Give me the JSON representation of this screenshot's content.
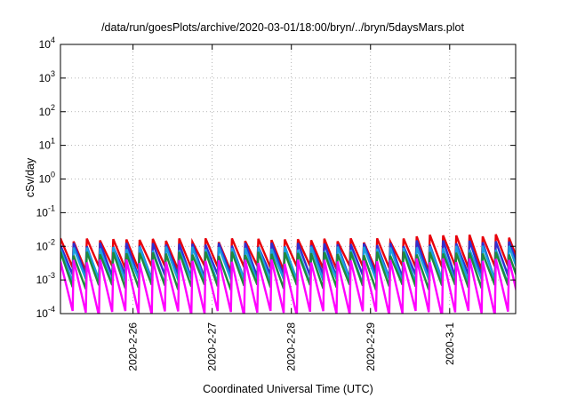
{
  "chart_data": {
    "type": "line",
    "title": "/data/run/goesPlots/archive/2020-03-01/18:00/bryn/../bryn/5daysMars.plot",
    "xlabel": "Coordinated Universal Time (UTC)",
    "ylabel": "cSv/day",
    "yscale": "log",
    "ylim": [
      0.0001,
      10000
    ],
    "xlim": [
      "2020-02-25 02:00",
      "2020-03-01 20:00"
    ],
    "y_ticks": [
      {
        "value": 0.0001,
        "base": "10",
        "exp": "-4"
      },
      {
        "value": 0.001,
        "base": "10",
        "exp": "-3"
      },
      {
        "value": 0.01,
        "base": "10",
        "exp": "-2"
      },
      {
        "value": 0.1,
        "base": "10",
        "exp": "-1"
      },
      {
        "value": 1,
        "base": "10",
        "exp": "0"
      },
      {
        "value": 10,
        "base": "10",
        "exp": "1"
      },
      {
        "value": 100,
        "base": "10",
        "exp": "2"
      },
      {
        "value": 1000,
        "base": "10",
        "exp": "3"
      },
      {
        "value": 10000,
        "base": "10",
        "exp": "4"
      }
    ],
    "x_ticks": [
      {
        "value": "2020-02-26",
        "label": "2020-2-26"
      },
      {
        "value": "2020-02-27",
        "label": "2020-2-27"
      },
      {
        "value": "2020-02-28",
        "label": "2020-2-28"
      },
      {
        "value": "2020-02-29",
        "label": "2020-2-29"
      },
      {
        "value": "2020-03-01",
        "label": "2020-3-1"
      }
    ],
    "grid": true,
    "cycle_hours": 4,
    "series": [
      {
        "color": "#e8000b",
        "peak": 0.015,
        "trough": 0.0022,
        "late_peak": 0.02
      },
      {
        "color": "#2f2fd0",
        "peak": 0.011,
        "trough": 0.0012,
        "late_peak": 0.013
      },
      {
        "color": "#1aa0e0",
        "peak": 0.0085,
        "trough": 0.0009,
        "late_peak": 0.009
      },
      {
        "color": "#1e8a3c",
        "peak": 0.006,
        "trough": 0.0006,
        "late_peak": 0.006
      },
      {
        "color": "#ff00ff",
        "peak": 0.0035,
        "trough": 0.0001,
        "late_peak": 0.0038
      }
    ]
  }
}
